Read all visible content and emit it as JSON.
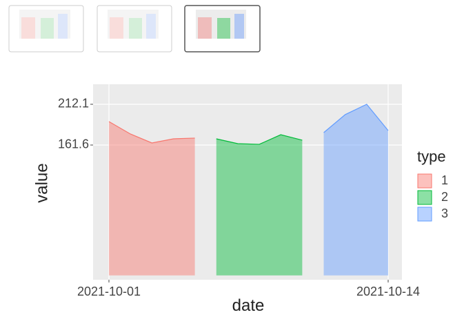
{
  "chart_data": {
    "type": "area",
    "x_label": "date",
    "y_label": "value",
    "legend_title": "type",
    "series": [
      {
        "name": "1",
        "color": "#F8766D",
        "x": [
          "2021-10-01",
          "2021-10-02",
          "2021-10-03",
          "2021-10-04",
          "2021-10-05"
        ],
        "values": [
          190.7,
          175.3,
          164.2,
          169.3,
          170.2
        ]
      },
      {
        "name": "2",
        "color": "#00BA38",
        "x": [
          "2021-10-06",
          "2021-10-07",
          "2021-10-08",
          "2021-10-09",
          "2021-10-10"
        ],
        "values": [
          169.3,
          163.3,
          162.5,
          174.4,
          167.6
        ]
      },
      {
        "name": "3",
        "color": "#619CFF",
        "x": [
          "2021-10-11",
          "2021-10-12",
          "2021-10-13",
          "2021-10-14"
        ],
        "values": [
          177.0,
          199.3,
          212.1,
          179.6
        ]
      }
    ],
    "xlim": [
      "2021-10-01",
      "2021-10-14"
    ],
    "xticks": [
      "2021-10-01",
      "2021-10-14"
    ],
    "ylim": [
      -5.3,
      236.9
    ],
    "yticks": [
      161.6,
      212.1
    ],
    "grid": true
  }
}
